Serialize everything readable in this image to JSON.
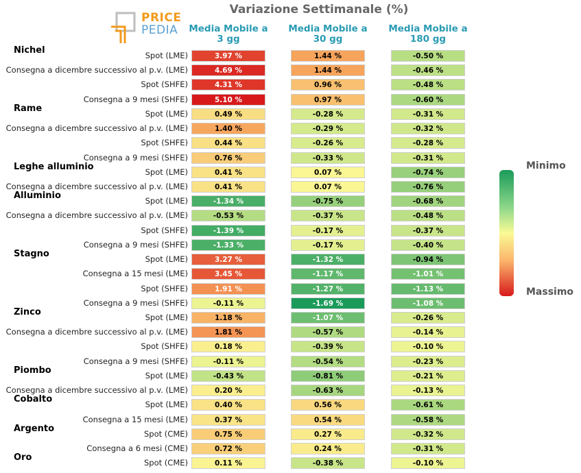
{
  "title": "Variazione Settimanale (%)",
  "logo": {
    "line1": "PRICE",
    "line2": "PEDIA"
  },
  "legend": {
    "min_label": "Minimo",
    "max_label": "Massimo",
    "min_color": "#1a9a5a",
    "mid_color": "#fafa96",
    "max_color": "#d7191c"
  },
  "chart_data": {
    "type": "heatmap",
    "title": "Variazione Settimanale (%)",
    "columns": [
      "Media Mobile a 3 gg",
      "Media Mobile a 30 gg",
      "Media Mobile a 180 gg"
    ],
    "groups": [
      {
        "name": "Nichel",
        "rows": [
          {
            "label": "Spot (LME)",
            "values": [
              3.97,
              1.44,
              -0.5
            ]
          },
          {
            "label": "Consegna a dicembre successivo al p.v. (LME)",
            "values": [
              4.69,
              1.44,
              -0.46
            ]
          },
          {
            "label": "Spot (SHFE)",
            "values": [
              4.31,
              0.96,
              -0.48
            ]
          },
          {
            "label": "Consegna a 9 mesi (SHFE)",
            "values": [
              5.1,
              0.97,
              -0.6
            ]
          }
        ]
      },
      {
        "name": "Rame",
        "rows": [
          {
            "label": "Spot (LME)",
            "values": [
              0.49,
              -0.28,
              -0.31
            ]
          },
          {
            "label": "Consegna a dicembre successivo al p.v. (LME)",
            "values": [
              1.4,
              -0.29,
              -0.32
            ]
          },
          {
            "label": "Spot (SHFE)",
            "values": [
              0.44,
              -0.26,
              -0.28
            ]
          },
          {
            "label": "Consegna a 9 mesi (SHFE)",
            "values": [
              0.76,
              -0.33,
              -0.31
            ]
          }
        ]
      },
      {
        "name": "Leghe alluminio",
        "rows": [
          {
            "label": "Spot (LME)",
            "values": [
              0.41,
              0.07,
              -0.74
            ]
          },
          {
            "label": "Consegna a dicembre successivo al p.v. (LME)",
            "values": [
              0.41,
              0.07,
              -0.76
            ]
          }
        ]
      },
      {
        "name": "Alluminio",
        "rows": [
          {
            "label": "Spot (LME)",
            "values": [
              -1.34,
              -0.75,
              -0.68
            ]
          },
          {
            "label": "Consegna a dicembre successivo al p.v. (LME)",
            "values": [
              -0.53,
              -0.37,
              -0.48
            ]
          },
          {
            "label": "Spot (SHFE)",
            "values": [
              -1.39,
              -0.17,
              -0.37
            ]
          },
          {
            "label": "Consegna a 9 mesi (SHFE)",
            "values": [
              -1.33,
              -0.17,
              -0.4
            ]
          }
        ]
      },
      {
        "name": "Stagno",
        "rows": [
          {
            "label": "Spot (LME)",
            "values": [
              3.27,
              -1.32,
              -0.94
            ]
          },
          {
            "label": "Consegna a 15 mesi (LME)",
            "values": [
              3.45,
              -1.17,
              -1.01
            ]
          },
          {
            "label": "Spot (SHFE)",
            "values": [
              1.91,
              -1.27,
              -1.13
            ]
          },
          {
            "label": "Consegna a 9 mesi (SHFE)",
            "values": [
              -0.11,
              -1.69,
              -1.08
            ]
          }
        ]
      },
      {
        "name": "Zinco",
        "rows": [
          {
            "label": "Spot (LME)",
            "values": [
              1.18,
              -1.07,
              -0.26
            ]
          },
          {
            "label": "Consegna a dicembre successivo al p.v. (LME)",
            "values": [
              1.81,
              -0.57,
              -0.14
            ]
          },
          {
            "label": "Spot (SHFE)",
            "values": [
              0.18,
              -0.39,
              -0.1
            ]
          },
          {
            "label": "Consegna a 9 mesi (SHFE)",
            "values": [
              -0.11,
              -0.54,
              -0.23
            ]
          }
        ]
      },
      {
        "name": "Piombo",
        "rows": [
          {
            "label": "Spot (LME)",
            "values": [
              -0.43,
              -0.81,
              -0.21
            ]
          },
          {
            "label": "Consegna a dicembre successivo al p.v. (LME)",
            "values": [
              0.2,
              -0.63,
              -0.13
            ]
          }
        ]
      },
      {
        "name": "Cobalto",
        "rows": [
          {
            "label": "Spot (LME)",
            "values": [
              0.4,
              0.56,
              -0.61
            ]
          },
          {
            "label": "Consegna a 15 mesi (LME)",
            "values": [
              0.37,
              0.54,
              -0.58
            ]
          }
        ]
      },
      {
        "name": "Argento",
        "rows": [
          {
            "label": "Spot (CME)",
            "values": [
              0.75,
              0.27,
              -0.32
            ]
          },
          {
            "label": "Consegna a 6 mesi (CME)",
            "values": [
              0.72,
              0.24,
              -0.31
            ]
          }
        ]
      },
      {
        "name": "Oro",
        "rows": [
          {
            "label": "Spot (CME)",
            "values": [
              0.11,
              -0.38,
              -0.1
            ]
          }
        ]
      }
    ],
    "value_suffix": " %"
  }
}
